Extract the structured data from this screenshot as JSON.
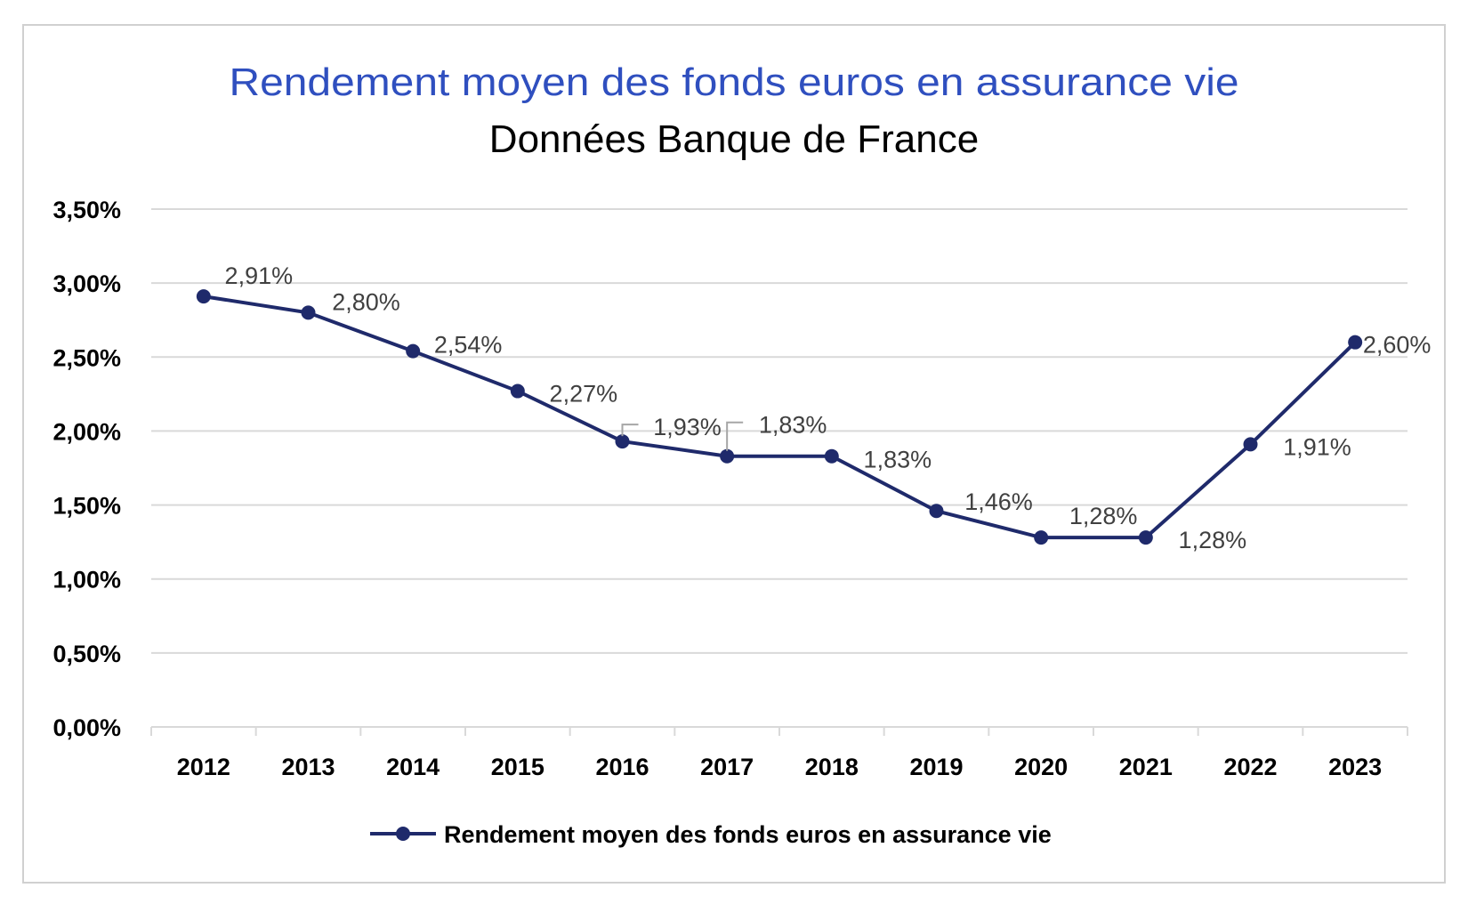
{
  "chart_data": {
    "type": "line",
    "title": "Rendement moyen des fonds euros en assurance vie",
    "subtitle": "Données Banque de France",
    "xlabel": "",
    "ylabel": "",
    "categories": [
      "2012",
      "2013",
      "2014",
      "2015",
      "2016",
      "2017",
      "2018",
      "2019",
      "2020",
      "2021",
      "2022",
      "2023"
    ],
    "series": [
      {
        "name": "Rendement moyen des fonds euros en assurance vie",
        "values": [
          2.91,
          2.8,
          2.54,
          2.27,
          1.93,
          1.83,
          1.83,
          1.46,
          1.28,
          1.28,
          1.91,
          2.6
        ],
        "labels": [
          "2,91%",
          "2,80%",
          "2,54%",
          "2,27%",
          "1,93%",
          "1,83%",
          "1,83%",
          "1,46%",
          "1,28%",
          "1,28%",
          "1,91%",
          "2,60%"
        ]
      }
    ],
    "ylim": [
      0,
      3.5
    ],
    "yticks": [
      0,
      0.5,
      1,
      1.5,
      2,
      2.5,
      3,
      3.5
    ],
    "ytick_labels": [
      "0,00%",
      "0,50%",
      "1,00%",
      "1,50%",
      "2,00%",
      "2,50%",
      "3,00%",
      "3,50%"
    ],
    "grid": true,
    "legend_position": "bottom",
    "colors": {
      "title": "#2F4FBF",
      "line": "#1F2A6B",
      "grid": "#D9D9D9",
      "border": "#D0D0D0",
      "leader": "#A6A6A6"
    }
  }
}
